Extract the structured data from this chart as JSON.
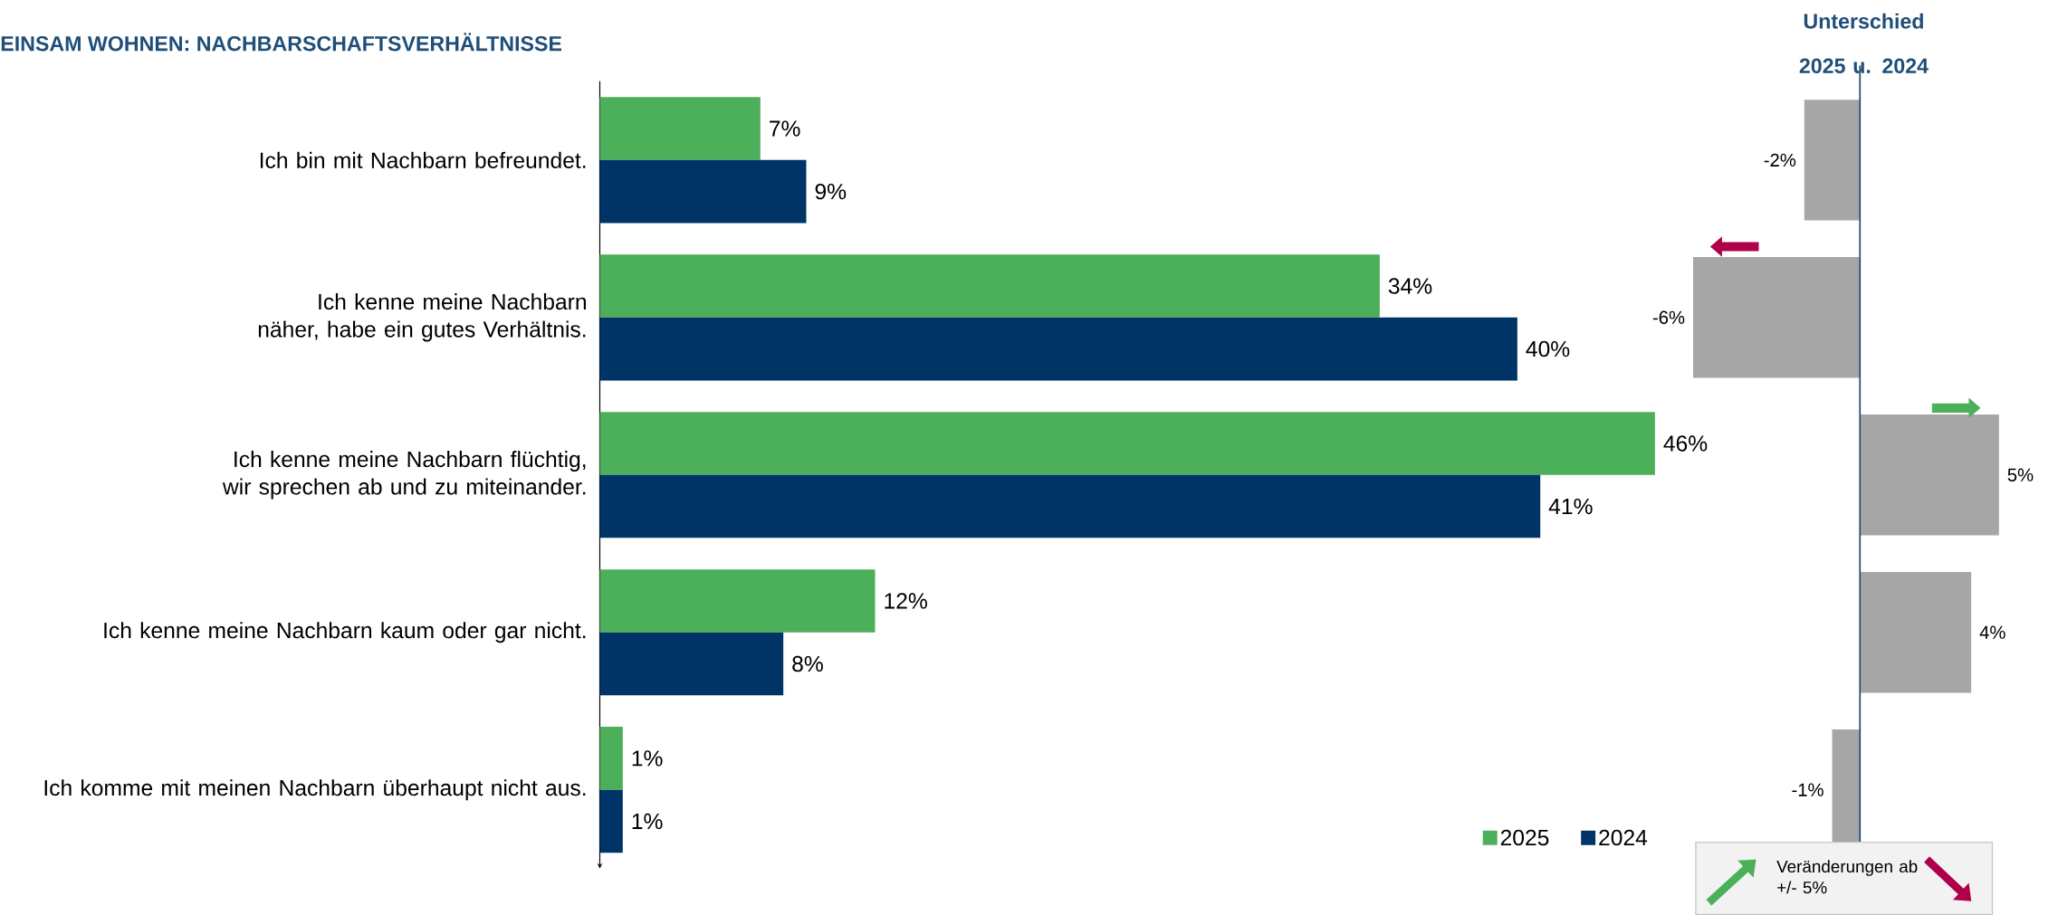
{
  "chart_data": [
    {
      "type": "bar",
      "orientation": "horizontal",
      "title": "EINSAM WOHNEN: NACHBARSCHAFTSVERHÄLTNISSE",
      "categories": [
        "Ich bin mit Nachbarn befreundet.",
        "Ich kenne meine Nachbarn näher, habe ein gutes Verhältnis.",
        "Ich kenne meine Nachbarn flüchtig, wir sprechen ab und zu miteinander.",
        "Ich kenne meine Nachbarn kaum oder gar nicht.",
        "Ich komme mit meinen Nachbarn überhaupt nicht aus."
      ],
      "series": [
        {
          "name": "2025",
          "color": "#4caf5a",
          "values": [
            7,
            34,
            46,
            12,
            1
          ],
          "value_labels": [
            "7%",
            "34%",
            "46%",
            "12%",
            "1%"
          ]
        },
        {
          "name": "2024",
          "color": "#003366",
          "values": [
            9,
            40,
            41,
            8,
            1
          ],
          "value_labels": [
            "9%",
            "40%",
            "41%",
            "8%",
            "1%"
          ]
        }
      ],
      "legend": "bottom right",
      "tick_labels": "y"
    },
    {
      "type": "bar",
      "orientation": "horizontal",
      "title": "Unterschied 2025 u. 2024",
      "categories": [
        null,
        null,
        null,
        null,
        null
      ],
      "values": [
        -2,
        -6,
        5,
        4,
        -1
      ],
      "value_labels": [
        "-2%",
        "-6%",
        "5%",
        "4%",
        "-1%"
      ],
      "color": "#a6a6a6",
      "tick_labels": false,
      "ref_lines": [
        {
          "axis": "x",
          "value": 0,
          "color": "#1f4e79"
        }
      ],
      "annotations": [
        "Veränderungen ab +/- 5%"
      ]
    }
  ]
}
